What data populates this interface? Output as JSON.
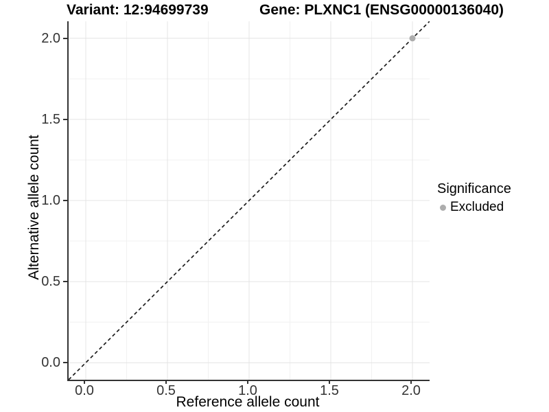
{
  "chart_data": {
    "type": "scatter",
    "titles": [
      "Variant: 12:94699739",
      "Gene: PLXNC1 (ENSG00000136040)"
    ],
    "xlabel": "Reference allele count",
    "ylabel": "Alternative allele count",
    "xlim": [
      -0.105,
      2.105
    ],
    "ylim": [
      -0.105,
      2.105
    ],
    "x_ticks": {
      "values": [
        0,
        0.5,
        1,
        1.5,
        2
      ],
      "labels": [
        "0.0",
        "0.5",
        "1.0",
        "1.5",
        "2.0"
      ]
    },
    "y_ticks": {
      "values": [
        0,
        0.5,
        1,
        1.5,
        2
      ],
      "labels": [
        "0.0",
        "0.5",
        "1.0",
        "1.5",
        "2.0"
      ]
    },
    "x_minor_ticks": [
      0.25,
      0.75,
      1.25,
      1.75
    ],
    "y_minor_ticks": [
      0.25,
      0.75,
      1.25,
      1.75
    ],
    "grid": "major+minor",
    "identity_line": {
      "slope": 1,
      "intercept": 0,
      "style": "dashed",
      "color": "#1a1a1a"
    },
    "series": [
      {
        "name": "Excluded",
        "color": "#adadad",
        "points": [
          {
            "x": 2.0,
            "y": 2.0
          }
        ]
      }
    ],
    "legend": {
      "title": "Significance",
      "position": "right",
      "items": [
        {
          "label": "Excluded",
          "color": "#adadad"
        }
      ]
    }
  },
  "colors": {
    "grid_major": "#e4e4e4",
    "grid_minor": "#f1f1f1",
    "axis_line": "#333333",
    "tick_label": "#333333",
    "point": "#adadad",
    "background": "#ffffff"
  }
}
